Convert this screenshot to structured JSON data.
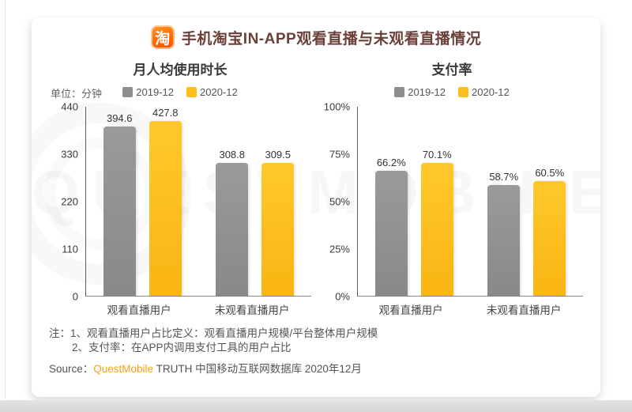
{
  "page": {
    "title": "手机淘宝IN-APP观看直播与未观看直播情况",
    "logo_glyph": "淘"
  },
  "colors": {
    "brand_orange": "#ff6a00",
    "bar_2019_gray": "#8e8e8e",
    "bar_2020_yellow": "#fcc01e",
    "title_maroon": "#6b4039",
    "source_brand_orange": "#f7a11a"
  },
  "chart_data": [
    {
      "type": "bar",
      "title": "月人均使用时长",
      "unit_label": "单位：分钟",
      "categories": [
        "观看直播用户",
        "未观看直播用户"
      ],
      "series": [
        {
          "name": "2019-12",
          "color": "#8e8e8e",
          "color_top": "#9a9a9a",
          "color_bottom": "#898989",
          "values": [
            394.6,
            308.8
          ],
          "labels": [
            "394.6",
            "308.8"
          ]
        },
        {
          "name": "2020-12",
          "color": "#fcc01e",
          "color_top": "#ffc82b",
          "color_bottom": "#f9b513",
          "values": [
            427.8,
            309.5
          ],
          "labels": [
            "427.8",
            "309.5"
          ]
        }
      ],
      "ylim": [
        0,
        440
      ],
      "yticks": [
        "440",
        "330",
        "220",
        "110",
        "0"
      ],
      "legend_position": "top",
      "grid": false
    },
    {
      "type": "bar",
      "title": "支付率",
      "unit_label": "",
      "categories": [
        "观看直播用户",
        "未观看直播用户"
      ],
      "series": [
        {
          "name": "2019-12",
          "color": "#8e8e8e",
          "color_top": "#9a9a9a",
          "color_bottom": "#898989",
          "values": [
            66.2,
            58.7
          ],
          "labels": [
            "66.2%",
            "58.7%"
          ]
        },
        {
          "name": "2020-12",
          "color": "#fcc01e",
          "color_top": "#ffc82b",
          "color_bottom": "#f9b513",
          "values": [
            70.1,
            60.5
          ],
          "labels": [
            "70.1%",
            "60.5%"
          ]
        }
      ],
      "ylim": [
        0,
        100
      ],
      "yticks": [
        "100%",
        "75%",
        "50%",
        "25%",
        "0%"
      ],
      "legend_position": "top",
      "grid": false
    }
  ],
  "notes": {
    "line1": "注：1、观看直播用户占比定义：观看直播用户规模/平台整体用户规模",
    "line2": "2、支付率：在APP内调用支付工具的用户占比"
  },
  "source": {
    "prefix": "Source：",
    "brand": "QuestMobile",
    "suffix": " TRUTH 中国移动互联网数据库 2020年12月"
  },
  "watermark": {
    "text": "QUESTMOBILE"
  }
}
